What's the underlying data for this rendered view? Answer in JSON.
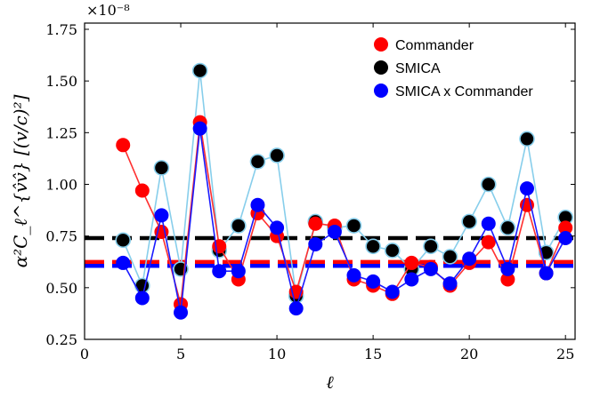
{
  "chart_data": {
    "type": "line",
    "title": "",
    "xlabel": "ℓ",
    "ylabel": "α²C_ℓ^{v̂v̂} [(v/c)²]",
    "y_multiplier": "×10⁻⁸",
    "xlim": [
      0,
      25.5
    ],
    "ylim": [
      0.25,
      1.78
    ],
    "x_ticks": [
      0,
      5,
      10,
      15,
      20,
      25
    ],
    "x_tick_labels": [
      "0",
      "5",
      "10",
      "15",
      "20",
      "25"
    ],
    "y_ticks": [
      0.25,
      0.5,
      0.75,
      1.0,
      1.25,
      1.5,
      1.75
    ],
    "y_tick_labels": [
      "0.25",
      "0.50",
      "0.75",
      "1.00",
      "1.25",
      "1.50",
      "1.75"
    ],
    "legend_position": "top-right",
    "x": [
      2,
      3,
      4,
      5,
      6,
      7,
      8,
      9,
      10,
      11,
      12,
      13,
      14,
      15,
      16,
      17,
      18,
      19,
      20,
      21,
      22,
      23,
      24,
      25
    ],
    "series": [
      {
        "name": "Commander",
        "color": "#ff0000",
        "line_color": "#ff3030",
        "values": [
          1.19,
          0.97,
          0.77,
          0.42,
          1.3,
          0.7,
          0.54,
          0.86,
          0.75,
          0.48,
          0.81,
          0.8,
          0.54,
          0.51,
          0.47,
          0.62,
          0.6,
          0.51,
          0.62,
          0.72,
          0.54,
          0.9,
          0.57,
          0.79
        ],
        "mean": 0.615
      },
      {
        "name": "SMICA",
        "color": "#000000",
        "line_color": "#87ceeb",
        "values": [
          0.73,
          0.51,
          1.08,
          0.59,
          1.55,
          0.68,
          0.8,
          1.11,
          1.14,
          0.46,
          0.82,
          0.79,
          0.8,
          0.7,
          0.68,
          0.59,
          0.7,
          0.65,
          0.82,
          1.0,
          0.79,
          1.22,
          0.67,
          0.84
        ],
        "mean": 0.74
      },
      {
        "name": "SMICA x Commander",
        "color": "#0000ff",
        "line_color": "#1a1aff",
        "values": [
          0.62,
          0.45,
          0.85,
          0.38,
          1.27,
          0.58,
          0.58,
          0.9,
          0.79,
          0.4,
          0.71,
          0.77,
          0.56,
          0.53,
          0.48,
          0.54,
          0.59,
          0.52,
          0.64,
          0.81,
          0.59,
          0.98,
          0.57,
          0.74
        ],
        "mean": 0.615
      }
    ]
  }
}
